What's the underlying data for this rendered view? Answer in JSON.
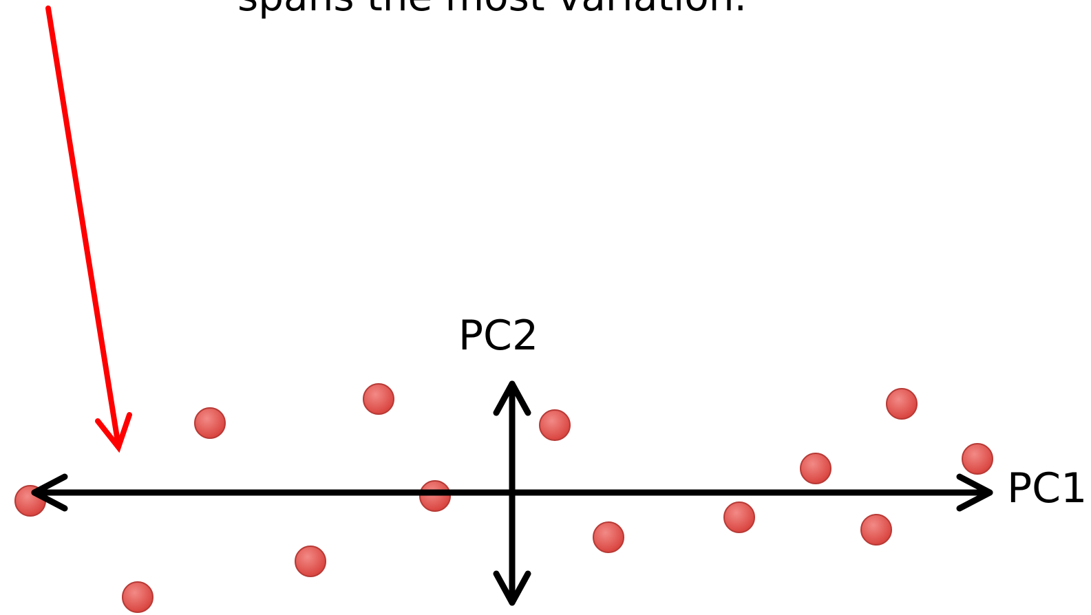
{
  "caption": "spans the most variation.",
  "axes": {
    "vertical": "PC2",
    "horizontal": "PC1"
  }
}
